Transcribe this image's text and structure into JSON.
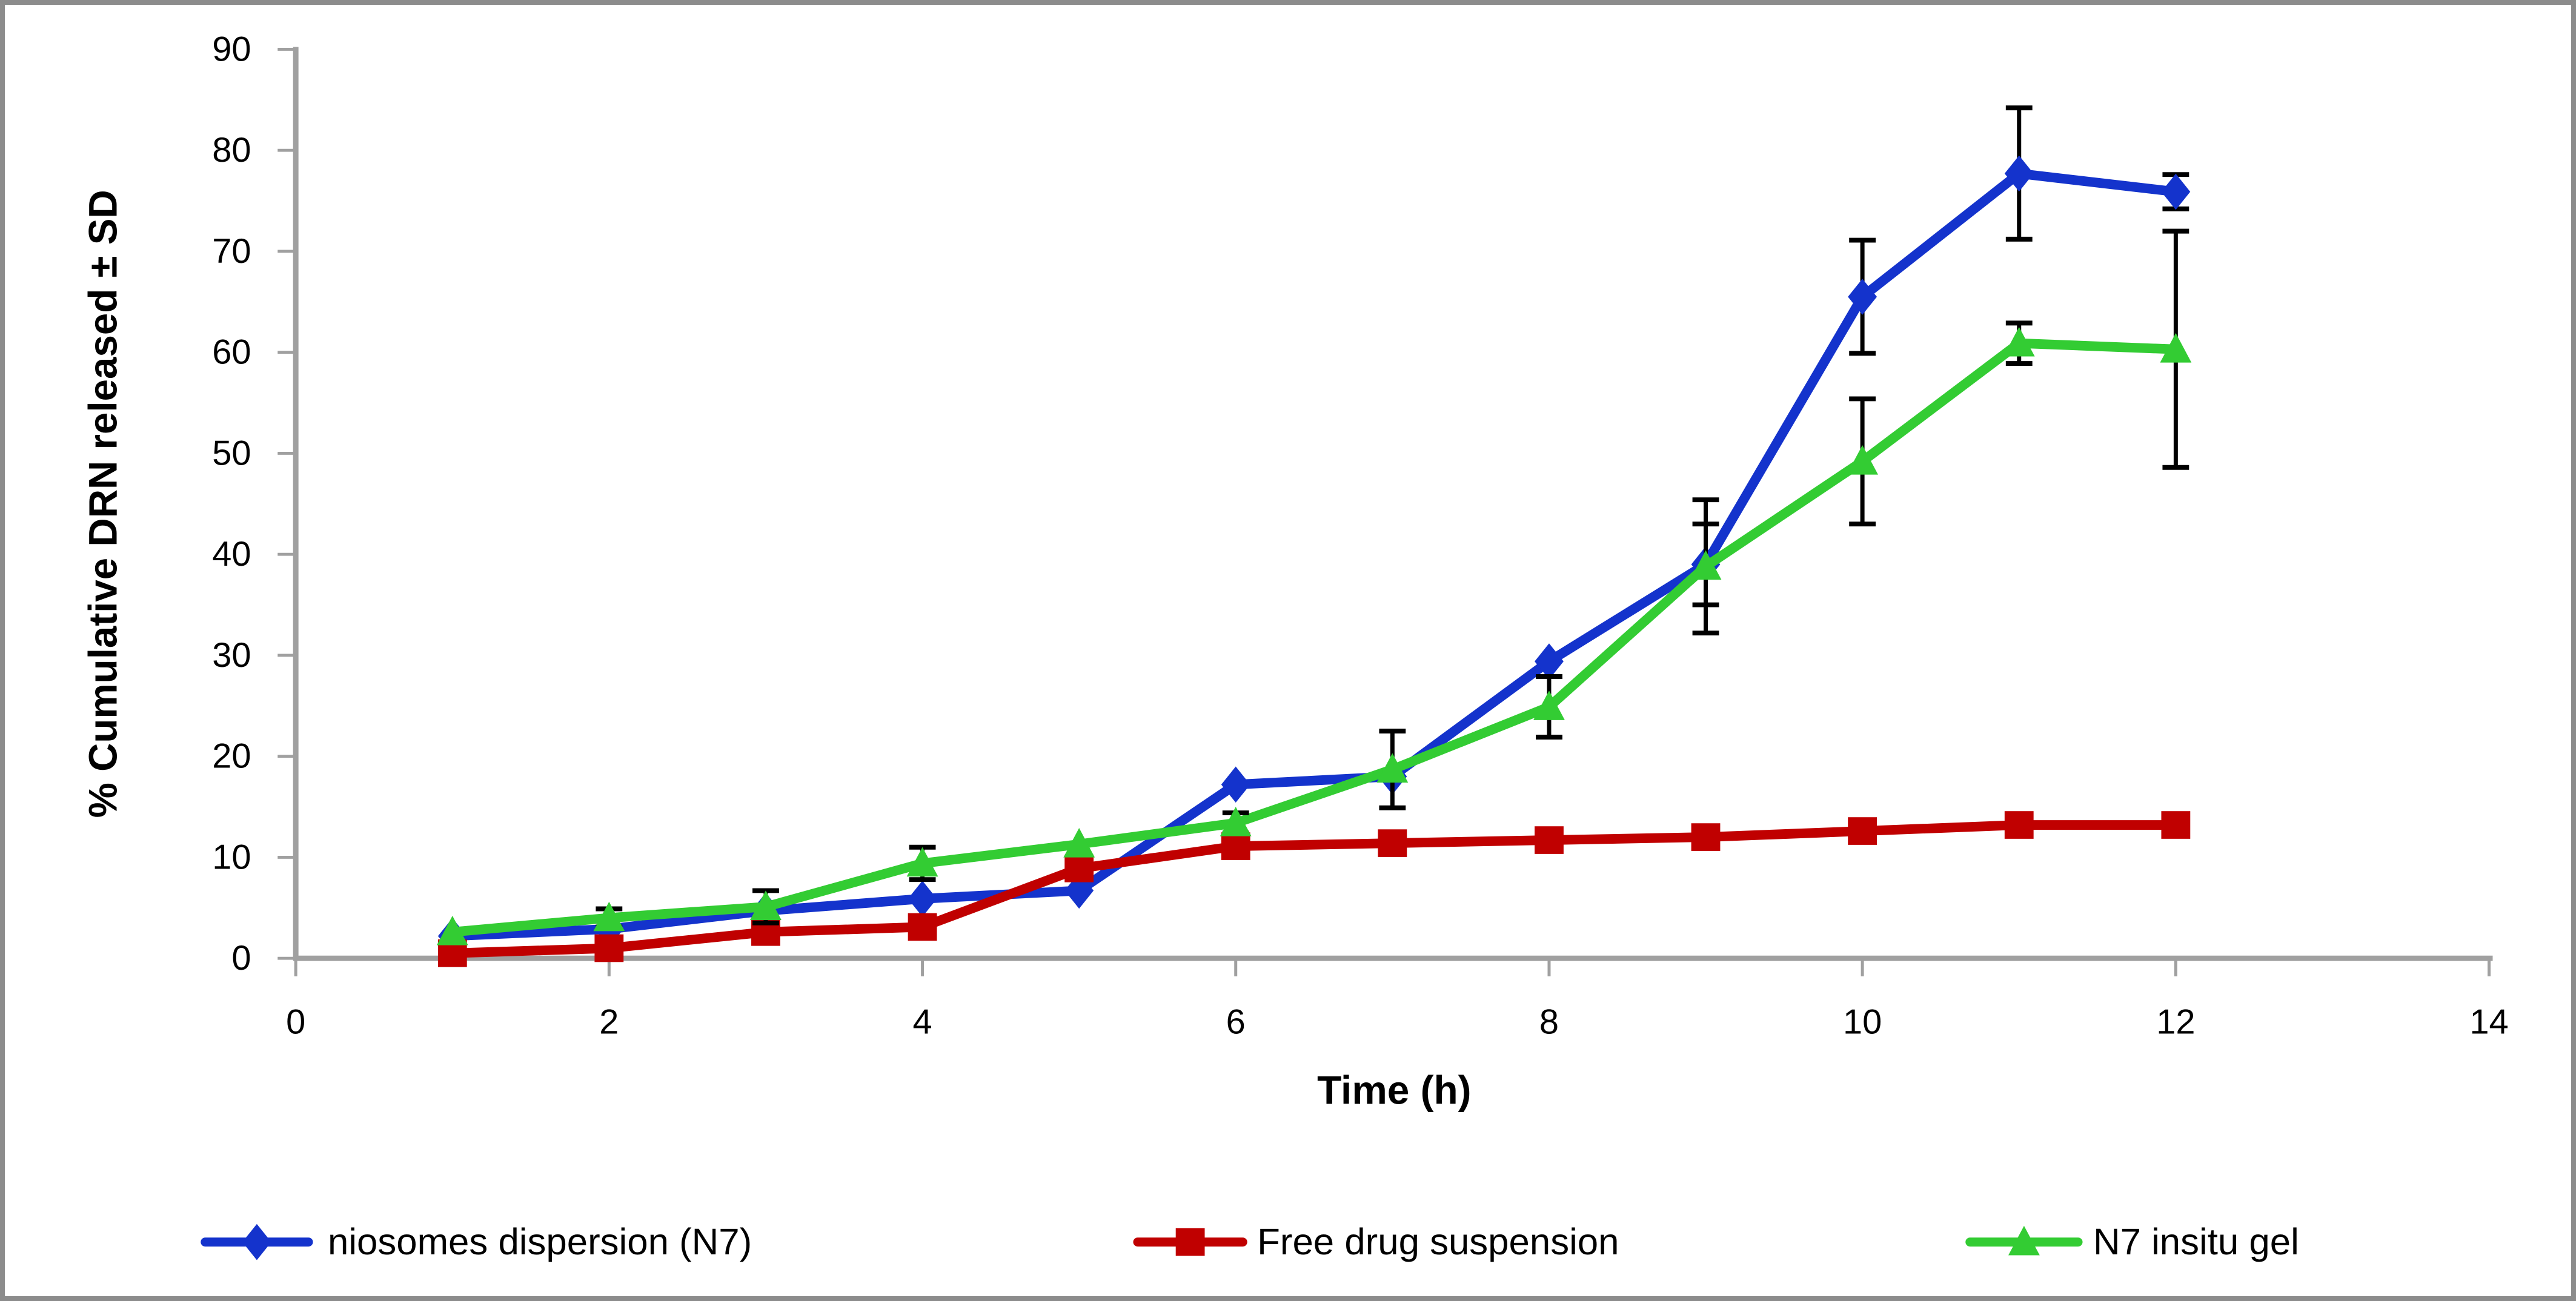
{
  "figure": {
    "background": "#FFFFFF",
    "border_color": "#8C8C8C"
  },
  "chart_data": {
    "type": "line",
    "title": "",
    "xlabel": "Time (h)",
    "ylabel": "% Cumulative DRN released ± SD",
    "x": [
      1,
      2,
      3,
      4,
      5,
      6,
      7,
      8,
      9,
      10,
      11,
      12
    ],
    "xlim": [
      0,
      14
    ],
    "ylim": [
      0,
      90
    ],
    "xticks": [
      0,
      2,
      4,
      6,
      8,
      10,
      12,
      14
    ],
    "yticks": [
      0,
      10,
      20,
      30,
      40,
      50,
      60,
      70,
      80,
      90
    ],
    "grid": false,
    "legend_position": "bottom",
    "axis_color": "#A0A0A0",
    "error_bar_color": "#000000",
    "text_color": "#000000",
    "series": [
      {
        "name": "niosomes dispersion (N7)",
        "color": "#1433CC",
        "marker": "diamond",
        "values": [
          2.2,
          2.9,
          4.7,
          5.9,
          6.7,
          17.2,
          18.0,
          29.4,
          39.0,
          65.5,
          77.7,
          75.9
        ],
        "errors": [
          0,
          0,
          0,
          0,
          0,
          0,
          0,
          0,
          4.0,
          5.6,
          6.5,
          1.7
        ]
      },
      {
        "name": "Free drug suspension",
        "color": "#C00000",
        "marker": "square",
        "values": [
          0.5,
          1.0,
          2.6,
          3.1,
          8.9,
          11.1,
          11.4,
          11.7,
          12.0,
          12.6,
          13.2,
          13.2
        ],
        "errors": [
          0,
          0,
          0,
          0,
          0,
          0,
          0,
          0,
          0,
          0,
          0,
          0
        ]
      },
      {
        "name": "N7 insitu gel",
        "color": "#33CC33",
        "marker": "triangle",
        "values": [
          2.6,
          4.0,
          5.1,
          9.4,
          11.3,
          13.4,
          18.7,
          24.9,
          38.8,
          49.2,
          60.9,
          60.3
        ],
        "errors": [
          0,
          0.9,
          1.6,
          1.6,
          0,
          1.0,
          3.8,
          3.0,
          6.6,
          6.2,
          2.0,
          11.7
        ]
      }
    ]
  }
}
